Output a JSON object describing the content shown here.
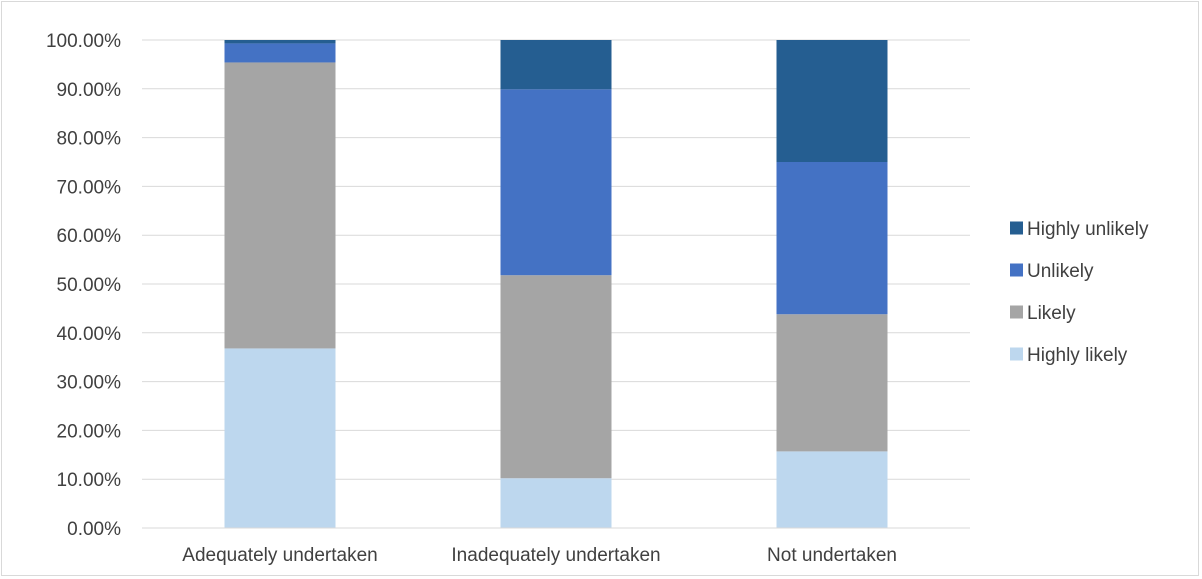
{
  "chart_data": {
    "type": "bar",
    "stacked": true,
    "categories": [
      "Adequately undertaken",
      "Inadequately undertaken",
      "Not undertaken"
    ],
    "series": [
      {
        "name": "Highly likely",
        "color": "#bdd7ee",
        "values": [
          36.8,
          10.2,
          15.7
        ]
      },
      {
        "name": "Likely",
        "color": "#a5a5a5",
        "values": [
          58.6,
          41.6,
          28.1
        ]
      },
      {
        "name": "Unlikely",
        "color": "#4472c4",
        "values": [
          3.9,
          38.1,
          31.2
        ]
      },
      {
        "name": "Highly unlikely",
        "color": "#255e91",
        "values": [
          0.7,
          10.1,
          25.0
        ]
      }
    ],
    "ylim": [
      0,
      100
    ],
    "yticks": [
      0,
      10,
      20,
      30,
      40,
      50,
      60,
      70,
      80,
      90,
      100
    ],
    "ytick_labels": [
      "0.00%",
      "10.00%",
      "20.00%",
      "30.00%",
      "40.00%",
      "50.00%",
      "60.00%",
      "70.00%",
      "80.00%",
      "90.00%",
      "100.00%"
    ],
    "legend_order": [
      "Highly unlikely",
      "Unlikely",
      "Likely",
      "Highly likely"
    ],
    "legend_position": "right",
    "grid": true,
    "gridline_color": "#d9d9d9"
  }
}
